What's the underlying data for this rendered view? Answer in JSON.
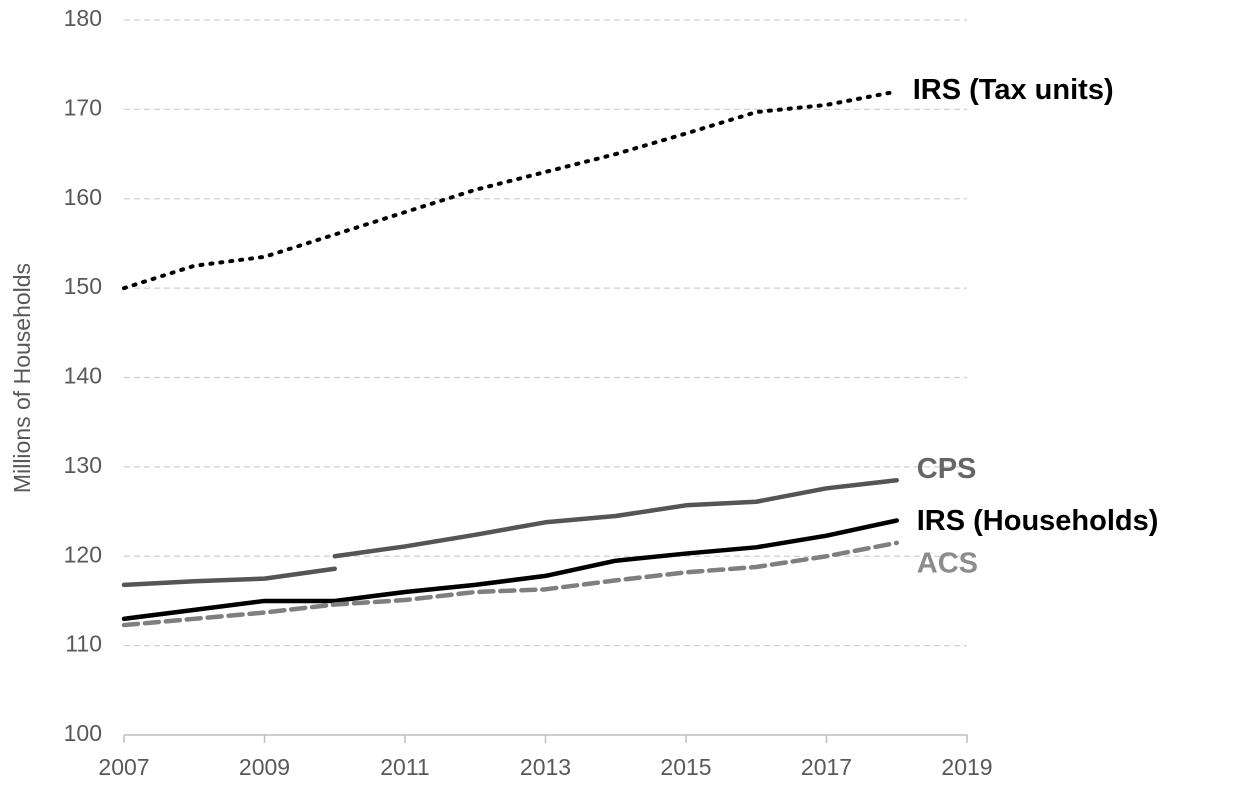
{
  "chart_data": {
    "type": "line",
    "ylabel": "Millions of Households",
    "x": [
      2007,
      2008,
      2009,
      2010,
      2011,
      2012,
      2013,
      2014,
      2015,
      2016,
      2017,
      2018
    ],
    "series": [
      {
        "name": "IRS (Tax units)",
        "color": "#000000",
        "style": "dotted",
        "values": [
          150,
          152.5,
          153.5,
          156,
          158.5,
          161,
          163,
          165,
          167.3,
          169.7,
          170.5,
          172
        ]
      },
      {
        "name": "CPS",
        "color": "#555555",
        "label_color": "#666666",
        "style": "solid",
        "x": [
          2007,
          2008,
          2009,
          2010,
          2010,
          2010,
          2011,
          2012,
          2013,
          2014,
          2015,
          2016,
          2017,
          2018
        ],
        "values": [
          116.8,
          117.2,
          117.5,
          118.6,
          null,
          120,
          121.1,
          122.4,
          123.8,
          124.5,
          125.7,
          126.1,
          127.6,
          128.5
        ]
      },
      {
        "name": "IRS (Households)",
        "color": "#000000",
        "style": "solid",
        "values": [
          113,
          114,
          115,
          115,
          116,
          116.8,
          117.8,
          119.5,
          120.3,
          121,
          122.3,
          124
        ]
      },
      {
        "name": "ACS",
        "color": "#7f7f7f",
        "label_color": "#8c8c8c",
        "style": "dashed",
        "values": [
          112.3,
          113,
          113.7,
          114.6,
          115.1,
          116,
          116.3,
          117.3,
          118.2,
          118.8,
          120,
          121.5
        ]
      }
    ],
    "xlim": [
      2007,
      2019
    ],
    "xticks": [
      2007,
      2009,
      2011,
      2013,
      2015,
      2017,
      2019
    ],
    "ylim": [
      100,
      180
    ],
    "yticks": [
      100,
      110,
      120,
      130,
      140,
      150,
      160,
      170,
      180
    ],
    "grid": true,
    "legend": "direct"
  }
}
